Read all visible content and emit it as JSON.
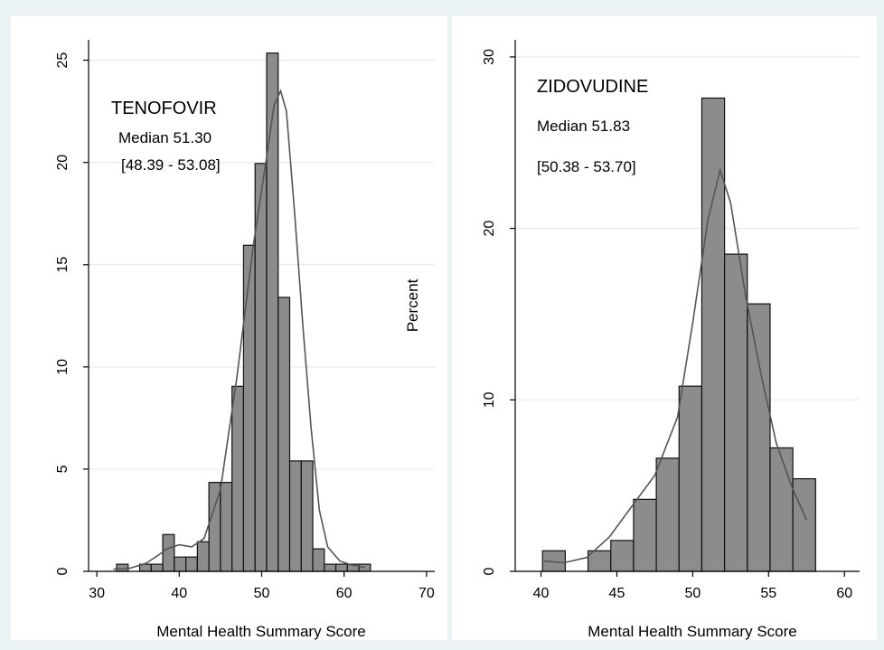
{
  "chart_data": [
    {
      "type": "bar",
      "panel": "left",
      "annotation_title": "TENOFOVIR",
      "annotation_median": "Median 51.30",
      "annotation_range": "[48.39 - 53.08]",
      "xlabel": "Mental Health Summary Score",
      "ylabel": "Percent",
      "xlim": [
        29,
        71
      ],
      "ylim": [
        0,
        26
      ],
      "xticks": [
        30,
        40,
        50,
        60,
        70
      ],
      "yticks": [
        0,
        5,
        10,
        15,
        20,
        25
      ],
      "grid": true,
      "bin_width": 1.4,
      "bins": [
        {
          "x0": 32.4,
          "value": 0.35
        },
        {
          "x0": 33.8,
          "value": 0
        },
        {
          "x0": 35.2,
          "value": 0.35
        },
        {
          "x0": 36.6,
          "value": 0.35
        },
        {
          "x0": 38.0,
          "value": 1.8
        },
        {
          "x0": 39.4,
          "value": 0.7
        },
        {
          "x0": 40.8,
          "value": 0.7
        },
        {
          "x0": 42.2,
          "value": 1.45
        },
        {
          "x0": 43.6,
          "value": 4.35
        },
        {
          "x0": 45.0,
          "value": 4.35
        },
        {
          "x0": 46.4,
          "value": 9.05
        },
        {
          "x0": 47.8,
          "value": 15.95
        },
        {
          "x0": 49.2,
          "value": 19.95
        },
        {
          "x0": 50.6,
          "value": 25.35
        },
        {
          "x0": 52.0,
          "value": 13.4
        },
        {
          "x0": 53.4,
          "value": 5.4
        },
        {
          "x0": 54.8,
          "value": 5.4
        },
        {
          "x0": 56.2,
          "value": 1.1
        },
        {
          "x0": 57.6,
          "value": 0.35
        },
        {
          "x0": 59.0,
          "value": 0.35
        },
        {
          "x0": 60.4,
          "value": 0.35
        },
        {
          "x0": 61.8,
          "value": 0.35
        }
      ],
      "density_curve": {
        "x": [
          32.0,
          34.0,
          36.0,
          37.5,
          38.5,
          40.0,
          41.5,
          43.0,
          45.0,
          47.0,
          49.0,
          50.5,
          51.5,
          52.3,
          53.0,
          54.0,
          55.0,
          56.0,
          57.0,
          58.0,
          59.5,
          61.0,
          62.5
        ],
        "y": [
          0.1,
          0.15,
          0.4,
          0.8,
          1.1,
          1.3,
          1.2,
          1.6,
          4.0,
          9.5,
          16.0,
          20.0,
          22.8,
          23.5,
          22.5,
          17.5,
          12.0,
          7.0,
          3.0,
          1.2,
          0.5,
          0.3,
          0.2
        ]
      }
    },
    {
      "type": "bar",
      "panel": "right",
      "annotation_title": "ZIDOVUDINE",
      "annotation_median": "Median 51.83",
      "annotation_range": "[50.38 - 53.70]",
      "xlabel": "Mental Health Summary Score",
      "ylabel": "",
      "xlim": [
        38.3,
        61.0
      ],
      "ylim": [
        0,
        31
      ],
      "xticks": [
        40,
        45,
        50,
        55,
        60
      ],
      "yticks": [
        0,
        10,
        20,
        30
      ],
      "grid": true,
      "bin_width": 1.5,
      "bins": [
        {
          "x0": 40.1,
          "value": 1.2
        },
        {
          "x0": 41.6,
          "value": 0
        },
        {
          "x0": 43.1,
          "value": 1.2
        },
        {
          "x0": 44.6,
          "value": 1.8
        },
        {
          "x0": 46.1,
          "value": 4.2
        },
        {
          "x0": 47.6,
          "value": 6.6
        },
        {
          "x0": 49.1,
          "value": 10.8
        },
        {
          "x0": 50.6,
          "value": 27.6
        },
        {
          "x0": 52.1,
          "value": 18.5
        },
        {
          "x0": 53.6,
          "value": 15.6
        },
        {
          "x0": 55.1,
          "value": 7.2
        },
        {
          "x0": 56.6,
          "value": 5.4
        }
      ],
      "density_curve": {
        "x": [
          40.2,
          41.5,
          43.0,
          44.5,
          46.0,
          47.5,
          49.0,
          50.0,
          51.0,
          51.8,
          52.5,
          53.5,
          54.5,
          55.5,
          56.5,
          57.5
        ],
        "y": [
          0.6,
          0.5,
          0.8,
          2.0,
          3.8,
          5.6,
          9.0,
          14.5,
          20.5,
          23.4,
          21.5,
          16.0,
          11.5,
          7.5,
          5.0,
          3.0
        ]
      }
    }
  ]
}
